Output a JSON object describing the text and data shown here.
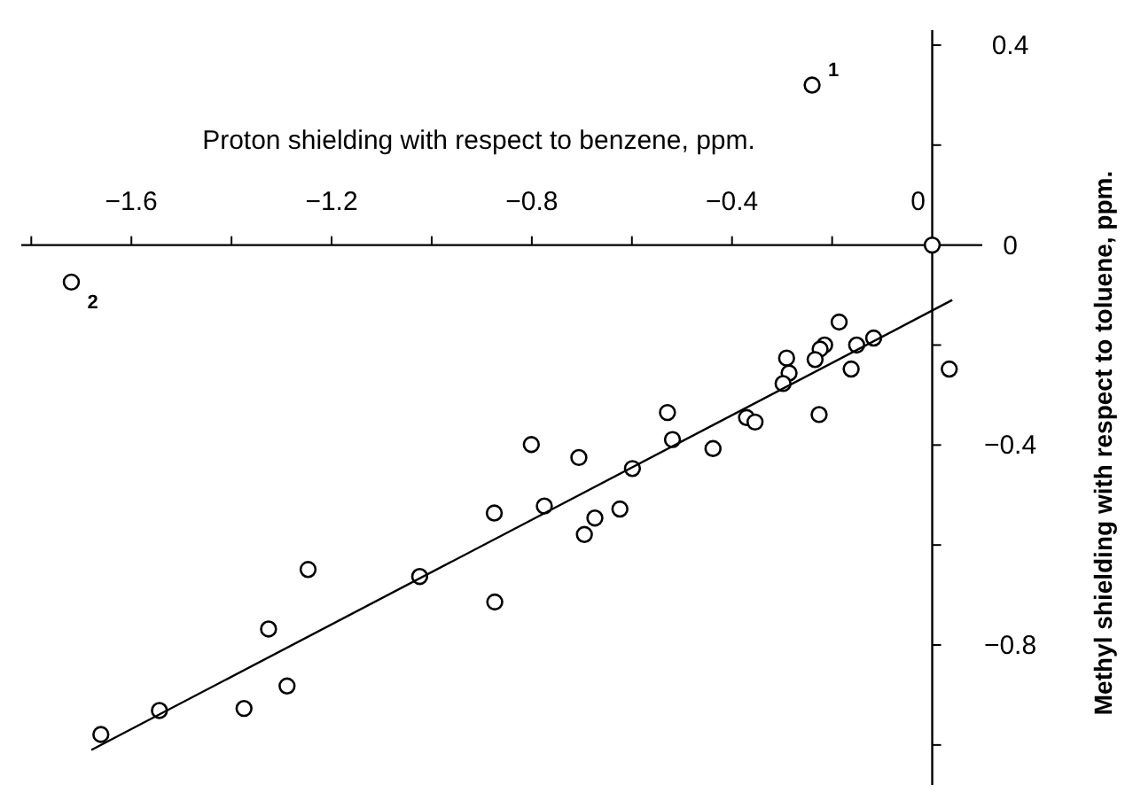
{
  "chart_data": {
    "type": "scatter",
    "xlabel": "Proton shielding with respect to benzene, ppm.",
    "ylabel": "Methyl shielding with respect to toluene, ppm.",
    "xlim": [
      -1.82,
      0.1
    ],
    "ylim": [
      -1.08,
      0.43
    ],
    "xticks": [
      {
        "value": -1.8,
        "label": null
      },
      -1.6,
      {
        "value": -1.4,
        "label": null
      },
      -1.2,
      {
        "value": -1.0,
        "label": null
      },
      -0.8,
      {
        "value": -0.6,
        "label": null
      },
      -0.4,
      {
        "value": -0.2,
        "label": null
      },
      0
    ],
    "yticks": [
      {
        "value": -1.0,
        "label": null
      },
      -0.8,
      {
        "value": -0.6,
        "label": null
      },
      -0.4,
      {
        "value": -0.2,
        "label": null
      },
      0,
      {
        "value": 0.2,
        "label": null
      },
      0.4
    ],
    "grid": false,
    "series": [
      {
        "marker": "circle",
        "color": "#000000",
        "x": [
          0,
          -0.24,
          -1.72,
          -0.186,
          -0.117,
          -0.151,
          -0.162,
          -0.215,
          -0.224,
          -0.234,
          -0.226,
          -0.291,
          -0.286,
          -0.298,
          0.034,
          -0.371,
          -0.354,
          -0.438,
          -0.529,
          -0.519,
          -0.599,
          -0.706,
          -0.624,
          -0.674,
          -0.695,
          -0.775,
          -0.801,
          -0.875,
          -0.874,
          -1.024,
          -1.247,
          -1.326,
          -1.289,
          -1.375,
          -1.544,
          -1.661
        ],
        "values": [
          0,
          0.32,
          -0.074,
          -0.154,
          -0.186,
          -0.2,
          -0.248,
          -0.2,
          -0.208,
          -0.229,
          -0.339,
          -0.226,
          -0.256,
          -0.277,
          -0.248,
          -0.345,
          -0.354,
          -0.407,
          -0.335,
          -0.389,
          -0.447,
          -0.425,
          -0.528,
          -0.546,
          -0.579,
          -0.522,
          -0.399,
          -0.536,
          -0.714,
          -0.663,
          -0.649,
          -0.768,
          -0.882,
          -0.927,
          -0.931,
          -0.979
        ]
      },
      {
        "type": "line",
        "color": "#000000",
        "x": [
          -1.68,
          0.04
        ],
        "values": [
          -1.01,
          -0.11
        ]
      }
    ],
    "annotations": [
      {
        "text": "1",
        "x": -0.24,
        "y": 0.32
      },
      {
        "text": "2",
        "x": -1.72,
        "y": -0.074
      }
    ]
  }
}
